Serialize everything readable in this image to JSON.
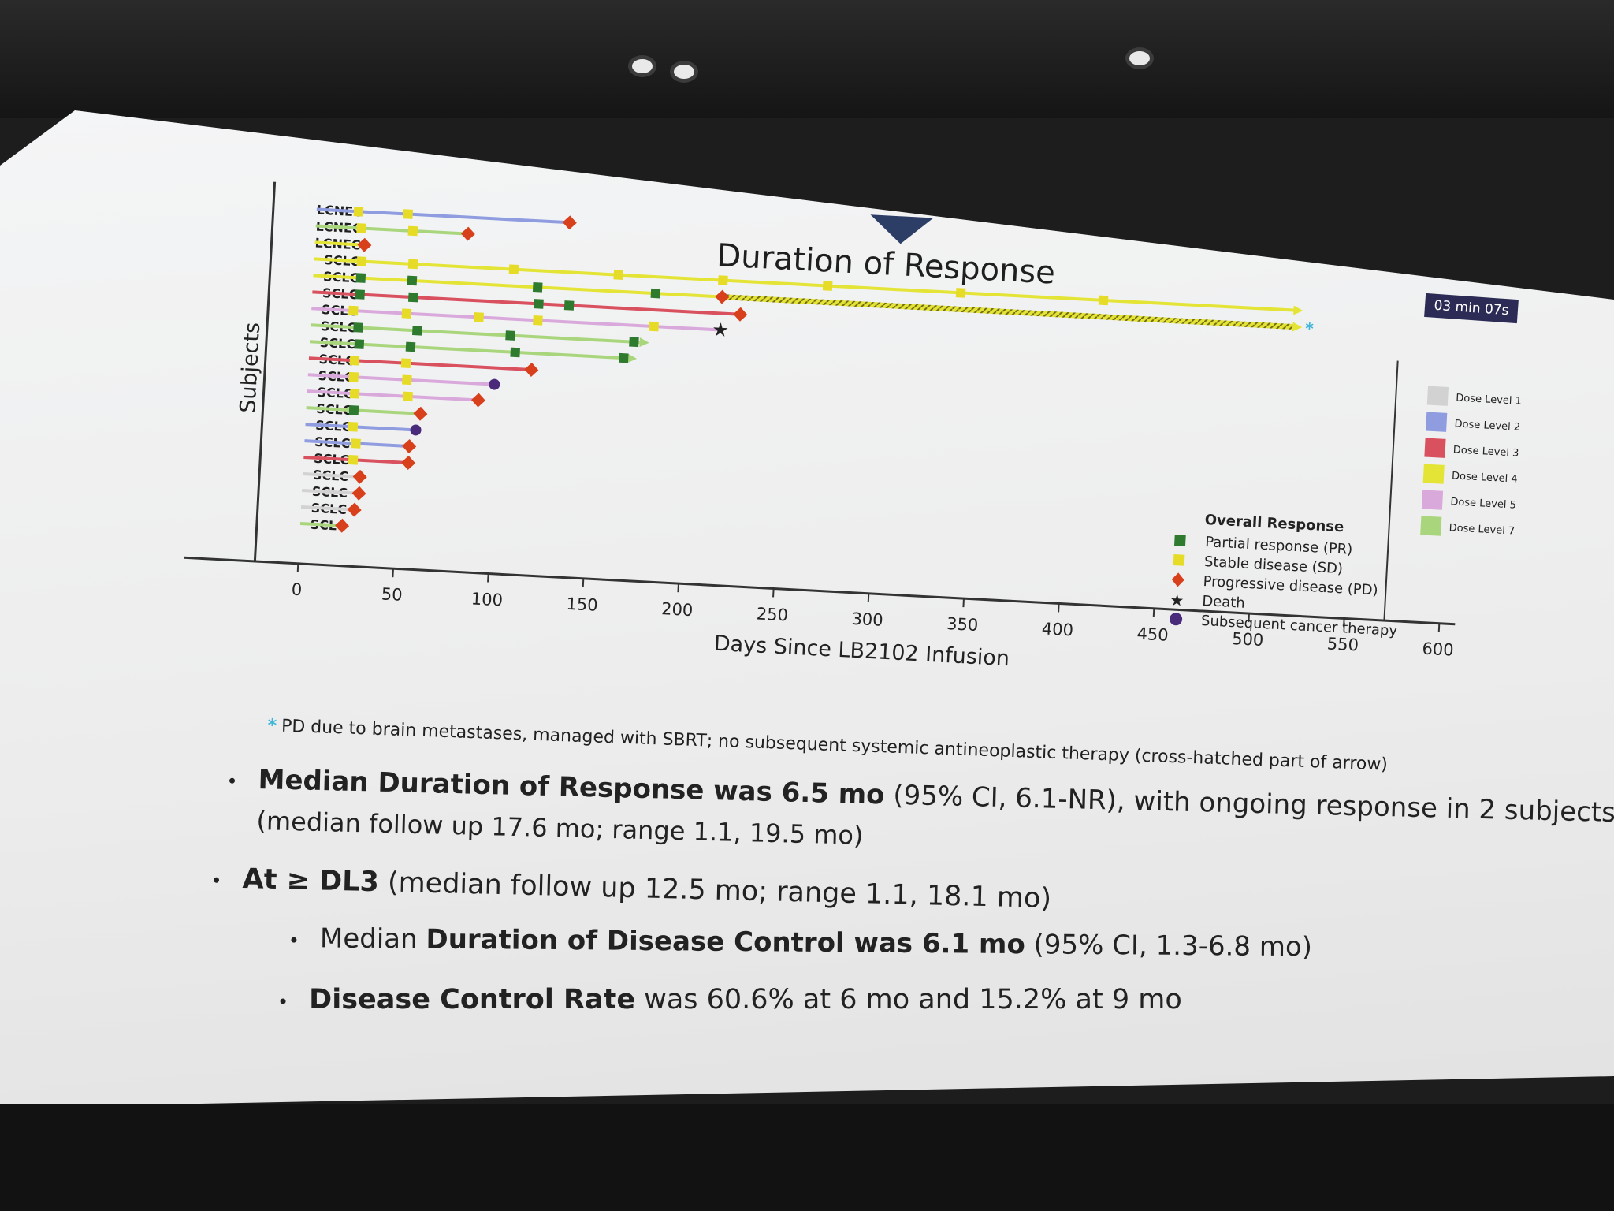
{
  "timer_text": "03 min 07s",
  "chart_data": {
    "type": "swimmer",
    "title": "Duration of Response",
    "xlabel": "Days Since LB2102 Infusion",
    "ylabel": "Subjects",
    "x_ticks": [
      0,
      50,
      100,
      150,
      200,
      250,
      300,
      350,
      400,
      450,
      500,
      550,
      600
    ],
    "xlim": [
      0,
      600
    ],
    "dose_colors": {
      "1": "#d2d2d2",
      "2": "#8f9de0",
      "3": "#d9505e",
      "4": "#e4e436",
      "5": "#d9a9dc",
      "7": "#a9d67c"
    },
    "legend_dose": [
      "Dose Level 1",
      "Dose Level 2",
      "Dose Level 3",
      "Dose Level 4",
      "Dose Level 5",
      "Dose Level 7"
    ],
    "legend_response_title": "Overall Response",
    "legend_response": [
      {
        "key": "PR",
        "label": "Partial response (PR)"
      },
      {
        "key": "SD",
        "label": "Stable disease (SD)"
      },
      {
        "key": "PD",
        "label": "Progressive disease (PD)"
      },
      {
        "key": "Death",
        "label": "Death"
      },
      {
        "key": "SCT",
        "label": "Subsequent cancer therapy"
      }
    ],
    "response_colors": {
      "PR": "#2e7a2e",
      "SD": "#e6dc28",
      "PD": "#d8401c",
      "Death": "#222222",
      "SCT": "#4a2a7a"
    },
    "subjects": [
      {
        "label": "LCNEC",
        "dose": 2,
        "end": 133,
        "events": [
          {
            "x": 22,
            "t": "SD"
          },
          {
            "x": 48,
            "t": "SD"
          },
          {
            "x": 133,
            "t": "PD"
          }
        ]
      },
      {
        "label": "LCNEC",
        "dose": 7,
        "end": 80,
        "events": [
          {
            "x": 24,
            "t": "SD"
          },
          {
            "x": 51,
            "t": "SD"
          },
          {
            "x": 80,
            "t": "PD"
          }
        ]
      },
      {
        "label": "LCNEC",
        "dose": 4,
        "end": 26,
        "events": [
          {
            "x": 26,
            "t": "PD"
          }
        ]
      },
      {
        "label": "SCLC",
        "dose": 4,
        "end": 515,
        "arrow": true,
        "events": [
          {
            "x": 25,
            "t": "SD"
          },
          {
            "x": 52,
            "t": "SD"
          },
          {
            "x": 105,
            "t": "SD"
          },
          {
            "x": 160,
            "t": "SD"
          },
          {
            "x": 215,
            "t": "SD"
          },
          {
            "x": 270,
            "t": "SD"
          },
          {
            "x": 340,
            "t": "SD"
          },
          {
            "x": 415,
            "t": "SD"
          }
        ]
      },
      {
        "label": "SCLC",
        "dose": 4,
        "end": 515,
        "arrow": true,
        "asterisk": true,
        "pd_at": 215,
        "events": [
          {
            "x": 25,
            "t": "PR"
          },
          {
            "x": 52,
            "t": "PR"
          },
          {
            "x": 118,
            "t": "PR"
          },
          {
            "x": 180,
            "t": "PR"
          },
          {
            "x": 215,
            "t": "PD"
          }
        ]
      },
      {
        "label": "SCLC",
        "dose": 3,
        "end": 225,
        "events": [
          {
            "x": 25,
            "t": "PR"
          },
          {
            "x": 53,
            "t": "PR"
          },
          {
            "x": 119,
            "t": "PR"
          },
          {
            "x": 135,
            "t": "PR"
          },
          {
            "x": 225,
            "t": "PD"
          }
        ]
      },
      {
        "label": "SCLC",
        "dose": 5,
        "end": 215,
        "events": [
          {
            "x": 22,
            "t": "SD"
          },
          {
            "x": 50,
            "t": "SD"
          },
          {
            "x": 88,
            "t": "SD"
          },
          {
            "x": 119,
            "t": "SD"
          },
          {
            "x": 180,
            "t": "SD"
          },
          {
            "x": 215,
            "t": "Death"
          }
        ]
      },
      {
        "label": "SCLC",
        "dose": 7,
        "end": 173,
        "arrow": true,
        "events": [
          {
            "x": 25,
            "t": "PR"
          },
          {
            "x": 56,
            "t": "PR"
          },
          {
            "x": 105,
            "t": "PR"
          },
          {
            "x": 170,
            "t": "PR"
          }
        ]
      },
      {
        "label": "SCLC",
        "dose": 7,
        "end": 167,
        "arrow": true,
        "events": [
          {
            "x": 26,
            "t": "PR"
          },
          {
            "x": 53,
            "t": "PR"
          },
          {
            "x": 108,
            "t": "PR"
          },
          {
            "x": 165,
            "t": "PR"
          }
        ]
      },
      {
        "label": "SCLC",
        "dose": 3,
        "end": 117,
        "events": [
          {
            "x": 24,
            "t": "SD"
          },
          {
            "x": 51,
            "t": "SD"
          },
          {
            "x": 117,
            "t": "PD"
          }
        ]
      },
      {
        "label": "SCLC",
        "dose": 5,
        "end": 98,
        "events": [
          {
            "x": 24,
            "t": "SD"
          },
          {
            "x": 52,
            "t": "SD"
          },
          {
            "x": 98,
            "t": "SCT"
          }
        ]
      },
      {
        "label": "SCLC",
        "dose": 5,
        "end": 90,
        "events": [
          {
            "x": 25,
            "t": "SD"
          },
          {
            "x": 53,
            "t": "SD"
          },
          {
            "x": 90,
            "t": "PD"
          }
        ]
      },
      {
        "label": "SCLC",
        "dose": 7,
        "end": 60,
        "events": [
          {
            "x": 25,
            "t": "PR"
          },
          {
            "x": 60,
            "t": "PD"
          }
        ]
      },
      {
        "label": "SCLC",
        "dose": 2,
        "end": 58,
        "events": [
          {
            "x": 25,
            "t": "SD"
          },
          {
            "x": 58,
            "t": "SCT"
          }
        ]
      },
      {
        "label": "SCLC",
        "dose": 2,
        "end": 55,
        "events": [
          {
            "x": 27,
            "t": "SD"
          },
          {
            "x": 55,
            "t": "PD"
          }
        ]
      },
      {
        "label": "SCLC",
        "dose": 3,
        "end": 55,
        "events": [
          {
            "x": 26,
            "t": "SD"
          },
          {
            "x": 55,
            "t": "PD"
          }
        ]
      },
      {
        "label": "SCLC",
        "dose": 1,
        "end": 30,
        "events": [
          {
            "x": 30,
            "t": "PD"
          }
        ]
      },
      {
        "label": "SCLC",
        "dose": 1,
        "end": 30,
        "events": [
          {
            "x": 30,
            "t": "PD"
          }
        ]
      },
      {
        "label": "SCLC",
        "dose": 1,
        "end": 28,
        "events": [
          {
            "x": 28,
            "t": "PD"
          }
        ]
      },
      {
        "label": "SCLC",
        "dose": 7,
        "end": 22,
        "events": [
          {
            "x": 22,
            "t": "PD"
          }
        ]
      }
    ]
  },
  "footnote": {
    "symbol": "*",
    "text": "PD due to brain metastases, managed with SBRT; no subsequent systemic antineoplastic therapy (cross-hatched part of arrow)"
  },
  "bullets": {
    "b1_bold": "Median Duration of Response was 6.5 mo",
    "b1_rest": " (95% CI, 6.1-NR), with ongoing response in 2 subjects",
    "b1_cont": "(median follow up 17.6 mo; range 1.1, 19.5 mo)",
    "b2_bold": "At ≥ DL3",
    "b2_rest": " (median follow up 12.5 mo; range 1.1, 18.1 mo)",
    "b3_pre": "Median ",
    "b3_bold": "Duration of Disease Control was 6.1 mo",
    "b3_rest": " (95% CI, 1.3-6.8 mo)",
    "b4_bold": "Disease Control Rate",
    "b4_rest": " was 60.6% at 6 mo and 15.2% at 9 mo"
  }
}
